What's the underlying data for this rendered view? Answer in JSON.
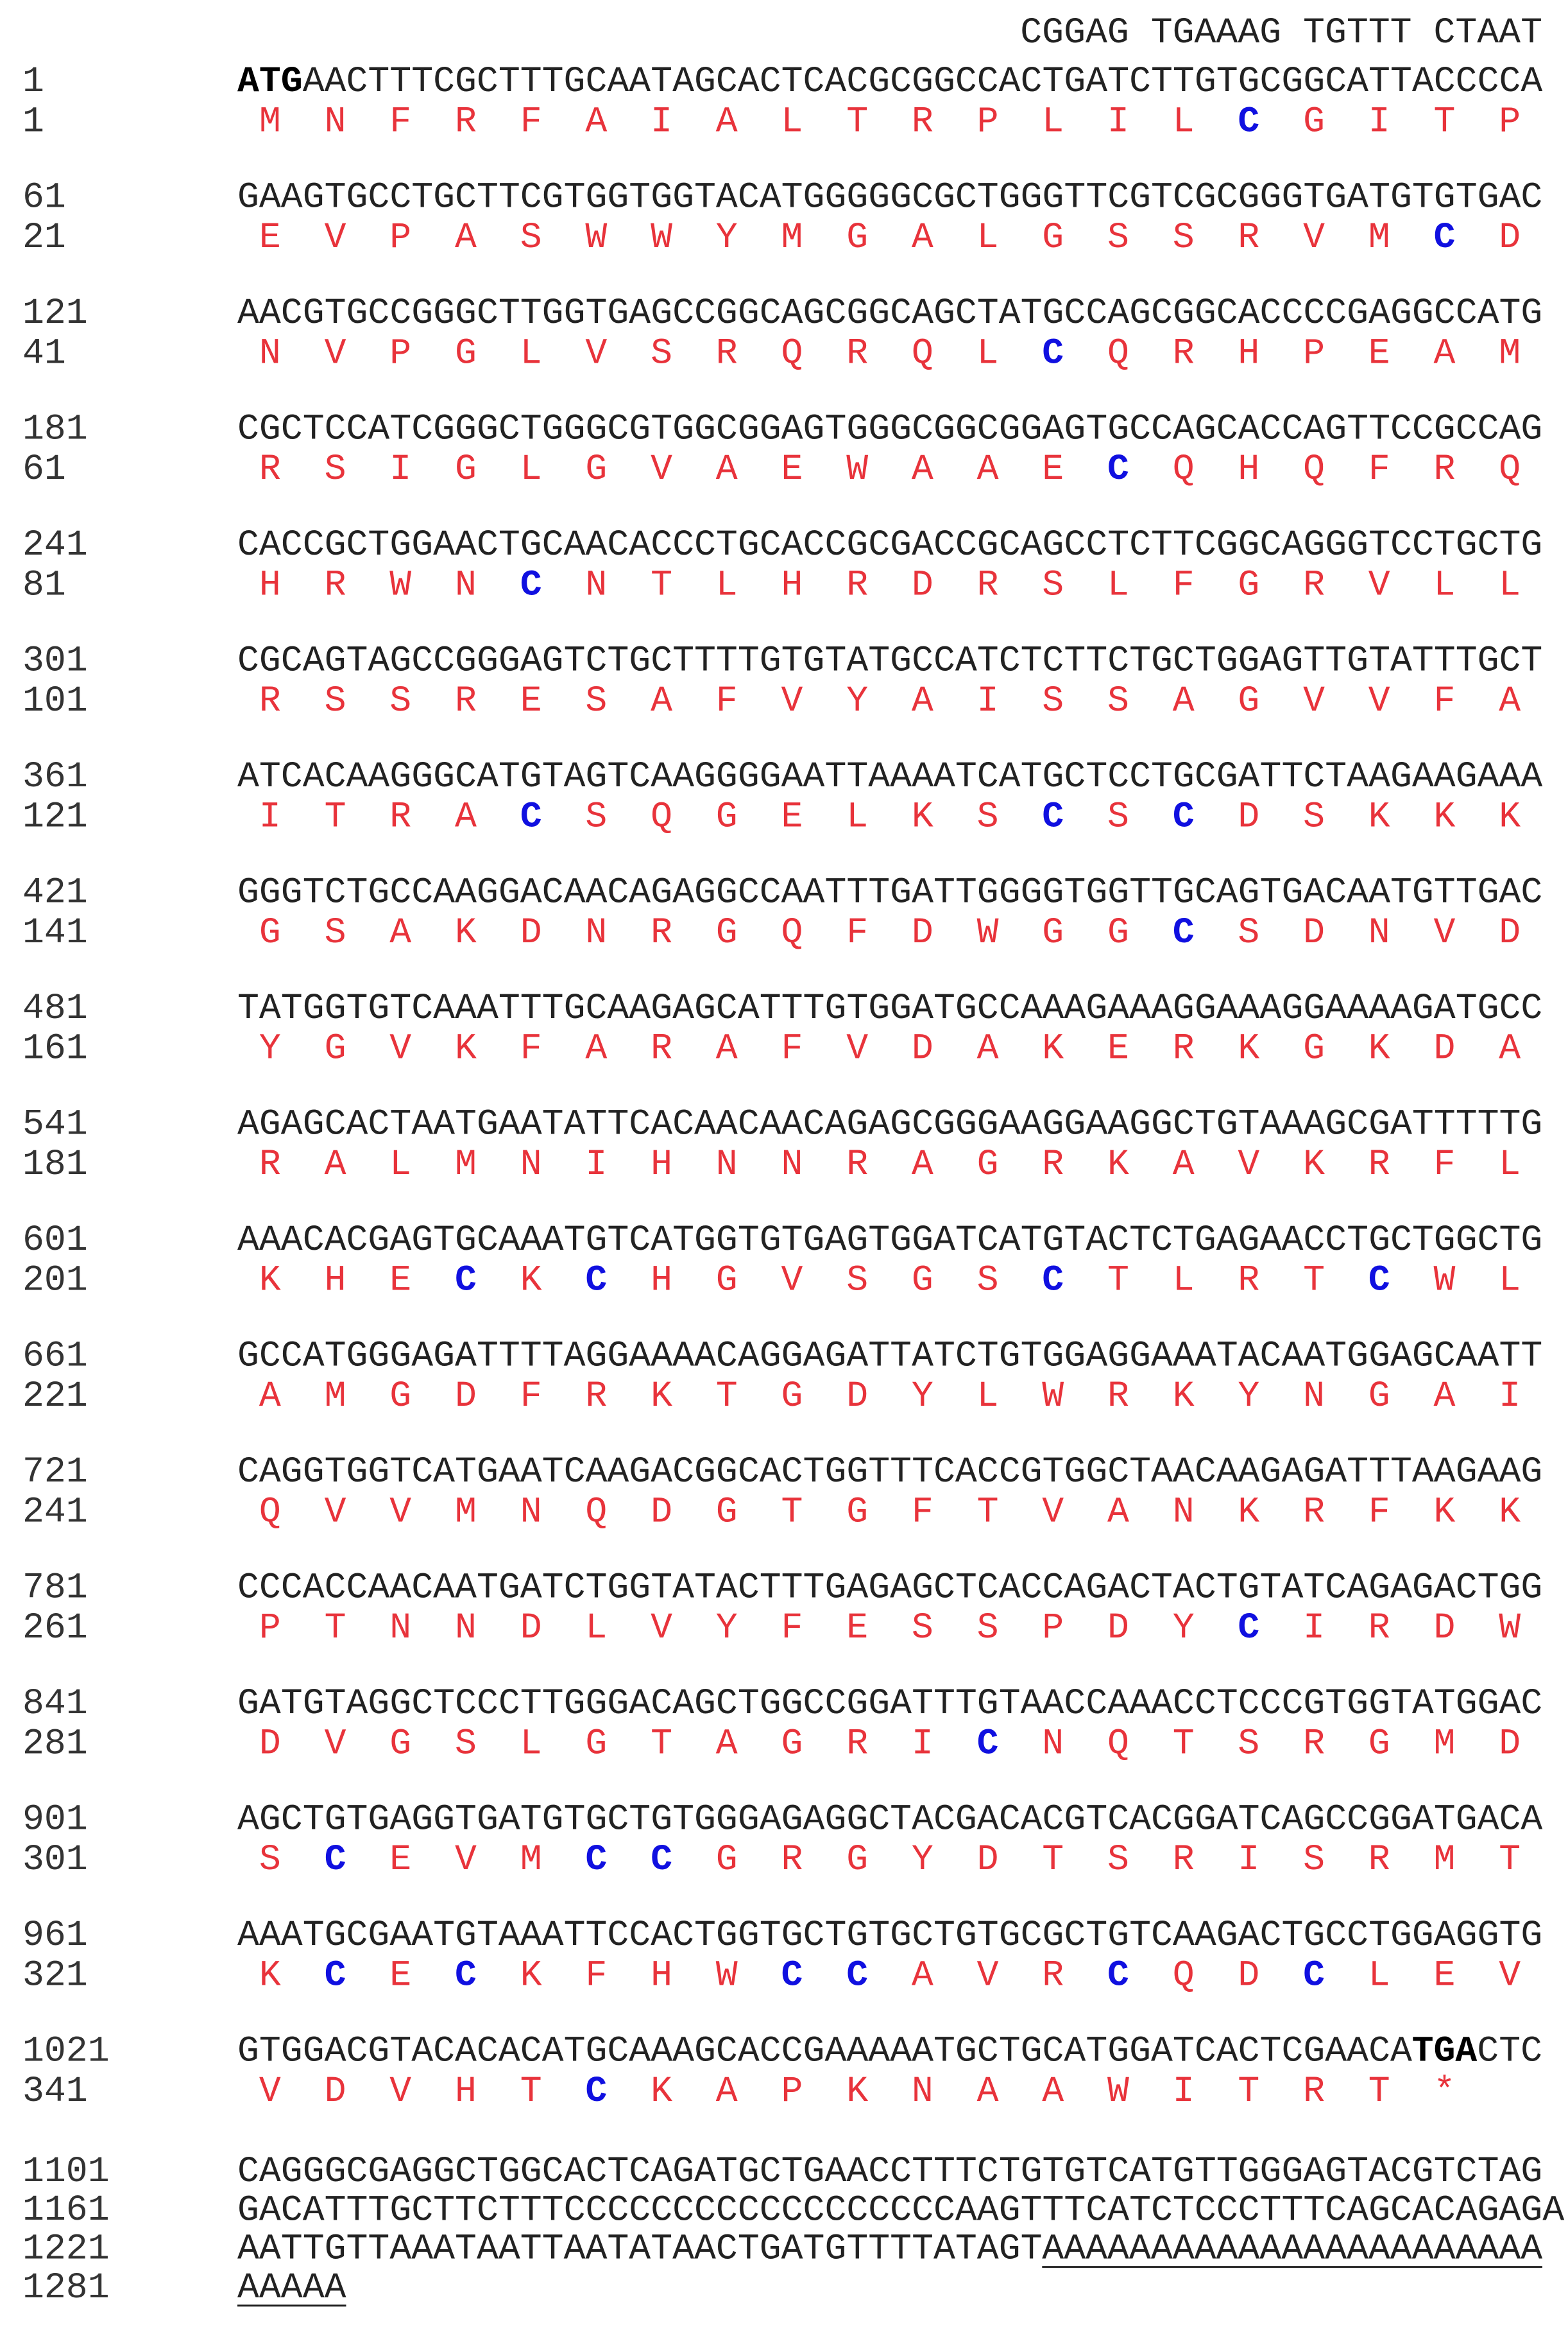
{
  "header": "CGGAG TGAAAG TGTTT CTAAT",
  "blocks": [
    {
      "nt_start": 1,
      "nt": [
        {
          "text": "ATG",
          "bold": true
        },
        "AACTTTCGCTTTGCAATAGCACTCACGCGGCCACTGATCTTGTGCGGCATTACCCCA"
      ],
      "aa_start": 1,
      "aa": [
        "M",
        "N",
        "F",
        "R",
        "F",
        "A",
        "I",
        "A",
        "L",
        "T",
        "R",
        "P",
        "L",
        "I",
        "L",
        {
          "text": "C",
          "bold": true
        },
        "G",
        "I",
        "T",
        "P"
      ]
    },
    {
      "nt_start": 61,
      "nt": [
        "GAAGTGCCTGCTTCGTGGTGGTACATGGGGGCGCTGGGTTCGTCGCGGGTGATGTGTGAC"
      ],
      "aa_start": 21,
      "aa": [
        "E",
        "V",
        "P",
        "A",
        "S",
        "W",
        "W",
        "Y",
        "M",
        "G",
        "A",
        "L",
        "G",
        "S",
        "S",
        "R",
        "V",
        "M",
        {
          "text": "C",
          "bold": true
        },
        "D"
      ]
    },
    {
      "nt_start": 121,
      "nt": [
        "AACGTGCCGGGCTTGGTGAGCCGGCAGCGGCAGCTATGCCAGCGGCACCCCGAGGCCATG"
      ],
      "aa_start": 41,
      "aa": [
        "N",
        "V",
        "P",
        "G",
        "L",
        "V",
        "S",
        "R",
        "Q",
        "R",
        "Q",
        "L",
        {
          "text": "C",
          "bold": true
        },
        "Q",
        "R",
        "H",
        "P",
        "E",
        "A",
        "M"
      ]
    },
    {
      "nt_start": 181,
      "nt": [
        "CGCTCCATCGGGCTGGGCGTGGCGGAGTGGGCGGCGGAGTGCCAGCACCAGTTCCGCCAG"
      ],
      "aa_start": 61,
      "aa": [
        "R",
        "S",
        "I",
        "G",
        "L",
        "G",
        "V",
        "A",
        "E",
        "W",
        "A",
        "A",
        "E",
        {
          "text": "C",
          "bold": true
        },
        "Q",
        "H",
        "Q",
        "F",
        "R",
        "Q"
      ]
    },
    {
      "nt_start": 241,
      "nt": [
        "CACCGCTGGAACTGCAACACCCTGCACCGCGACCGCAGCCTCTTCGGCAGGGTCCTGCTG"
      ],
      "aa_start": 81,
      "aa": [
        "H",
        "R",
        "W",
        "N",
        {
          "text": "C",
          "bold": true
        },
        "N",
        "T",
        "L",
        "H",
        "R",
        "D",
        "R",
        "S",
        "L",
        "F",
        "G",
        "R",
        "V",
        "L",
        "L"
      ]
    },
    {
      "nt_start": 301,
      "nt": [
        "CGCAGTAGCCGGGAGTCTGCTTTTGTGTATGCCATCTCTTCTGCTGGAGTTGTATTTGCT"
      ],
      "aa_start": 101,
      "aa": [
        "R",
        "S",
        "S",
        "R",
        "E",
        "S",
        "A",
        "F",
        "V",
        "Y",
        "A",
        "I",
        "S",
        "S",
        "A",
        "G",
        "V",
        "V",
        "F",
        "A"
      ]
    },
    {
      "nt_start": 361,
      "nt": [
        "ATCACAAGGGCATGTAGTCAAGGGGAATTAAAATCATGCTCCTGCGATTCTAAGAAGAAA"
      ],
      "aa_start": 121,
      "aa": [
        "I",
        "T",
        "R",
        "A",
        {
          "text": "C",
          "bold": true
        },
        "S",
        "Q",
        "G",
        "E",
        "L",
        "K",
        "S",
        {
          "text": "C",
          "bold": true
        },
        "S",
        {
          "text": "C",
          "bold": true
        },
        "D",
        "S",
        "K",
        "K",
        "K"
      ]
    },
    {
      "nt_start": 421,
      "nt": [
        "GGGTCTGCCAAGGACAACAGAGGCCAATTTGATTGGGGTGGTTGCAGTGACAATGTTGAC"
      ],
      "aa_start": 141,
      "aa": [
        "G",
        "S",
        "A",
        "K",
        "D",
        "N",
        "R",
        "G",
        "Q",
        "F",
        "D",
        "W",
        "G",
        "G",
        {
          "text": "C",
          "bold": true
        },
        "S",
        "D",
        "N",
        "V",
        "D"
      ]
    },
    {
      "nt_start": 481,
      "nt": [
        "TATGGTGTCAAATTTGCAAGAGCATTTGTGGATGCCAAAGAAAGGAAAGGAAAAGATGCC"
      ],
      "aa_start": 161,
      "aa": [
        "Y",
        "G",
        "V",
        "K",
        "F",
        "A",
        "R",
        "A",
        "F",
        "V",
        "D",
        "A",
        "K",
        "E",
        "R",
        "K",
        "G",
        "K",
        "D",
        "A"
      ]
    },
    {
      "nt_start": 541,
      "nt": [
        "AGAGCACTAATGAATATTCACAACAACAGAGCGGGAAGGAAGGCTGTAAAGCGATTTTTG"
      ],
      "aa_start": 181,
      "aa": [
        "R",
        "A",
        "L",
        "M",
        "N",
        "I",
        "H",
        "N",
        "N",
        "R",
        "A",
        "G",
        "R",
        "K",
        "A",
        "V",
        "K",
        "R",
        "F",
        "L"
      ]
    },
    {
      "nt_start": 601,
      "nt": [
        "AAACACGAGTGCAAATGTCATGGTGTGAGTGGATCATGTACTCTGAGAACCTGCTGGCTG"
      ],
      "aa_start": 201,
      "aa": [
        "K",
        "H",
        "E",
        {
          "text": "C",
          "bold": true
        },
        "K",
        {
          "text": "C",
          "bold": true
        },
        "H",
        "G",
        "V",
        "S",
        "G",
        "S",
        {
          "text": "C",
          "bold": true
        },
        "T",
        "L",
        "R",
        "T",
        {
          "text": "C",
          "bold": true
        },
        "W",
        "L"
      ]
    },
    {
      "nt_start": 661,
      "nt": [
        "GCCATGGGAGATTTTAGGAAAACAGGAGATTATCTGTGGAGGAAATACAATGGAGCAATT"
      ],
      "aa_start": 221,
      "aa": [
        "A",
        "M",
        "G",
        "D",
        "F",
        "R",
        "K",
        "T",
        "G",
        "D",
        "Y",
        "L",
        "W",
        "R",
        "K",
        "Y",
        "N",
        "G",
        "A",
        "I"
      ]
    },
    {
      "nt_start": 721,
      "nt": [
        "CAGGTGGTCATGAATCAAGACGGCACTGGTTTCACCGTGGCTAACAAGAGATTTAAGAAG"
      ],
      "aa_start": 241,
      "aa": [
        "Q",
        "V",
        "V",
        "M",
        "N",
        "Q",
        "D",
        "G",
        "T",
        "G",
        "F",
        "T",
        "V",
        "A",
        "N",
        "K",
        "R",
        "F",
        "K",
        "K"
      ]
    },
    {
      "nt_start": 781,
      "nt": [
        "CCCACCAACAATGATCTGGTATACTTTGAGAGCTCACCAGACTACTGTATCAGAGACTGG"
      ],
      "aa_start": 261,
      "aa": [
        "P",
        "T",
        "N",
        "N",
        "D",
        "L",
        "V",
        "Y",
        "F",
        "E",
        "S",
        "S",
        "P",
        "D",
        "Y",
        {
          "text": "C",
          "bold": true
        },
        "I",
        "R",
        "D",
        "W"
      ]
    },
    {
      "nt_start": 841,
      "nt": [
        "GATGTAGGCTCCCTTGGGACAGCTGGCCGGATTTGTAACCAAACCTCCCGTGGTATGGAC"
      ],
      "aa_start": 281,
      "aa": [
        "D",
        "V",
        "G",
        "S",
        "L",
        "G",
        "T",
        "A",
        "G",
        "R",
        "I",
        {
          "text": "C",
          "bold": true
        },
        "N",
        "Q",
        "T",
        "S",
        "R",
        "G",
        "M",
        "D"
      ]
    },
    {
      "nt_start": 901,
      "nt": [
        "AGCTGTGAGGTGATGTGCTGTGGGAGAGGCTACGACACGTCACGGATCAGCCGGATGACA"
      ],
      "aa_start": 301,
      "aa": [
        "S",
        {
          "text": "C",
          "bold": true
        },
        "E",
        "V",
        "M",
        {
          "text": "C",
          "bold": true
        },
        {
          "text": "C",
          "bold": true
        },
        "G",
        "R",
        "G",
        "Y",
        "D",
        "T",
        "S",
        "R",
        "I",
        "S",
        "R",
        "M",
        "T"
      ]
    },
    {
      "nt_start": 961,
      "nt": [
        "AAATGCGAATGTAAATTCCACTGGTGCTGTGCTGTGCGCTGTCAAGACTGCCTGGAGGTG"
      ],
      "aa_start": 321,
      "aa": [
        "K",
        {
          "text": "C",
          "bold": true
        },
        "E",
        {
          "text": "C",
          "bold": true
        },
        "K",
        "F",
        "H",
        "W",
        {
          "text": "C",
          "bold": true
        },
        {
          "text": "C",
          "bold": true
        },
        "A",
        "V",
        "R",
        {
          "text": "C",
          "bold": true
        },
        "Q",
        "D",
        {
          "text": "C",
          "bold": true
        },
        "L",
        "E",
        "V"
      ]
    },
    {
      "nt_start": 1021,
      "nt": [
        "GTGGACGTACACACATGCAAAGCACCGAAAAATGCTGCATGGATCACTCGAACA",
        {
          "text": "TGA",
          "bold": true
        },
        "CTC"
      ],
      "aa_start": 341,
      "aa": [
        "V",
        "D",
        "V",
        "H",
        "T",
        {
          "text": "C",
          "bold": true
        },
        "K",
        "A",
        "P",
        "K",
        "N",
        "A",
        "A",
        "W",
        "I",
        "T",
        "R",
        "T",
        "*"
      ]
    }
  ],
  "tail": [
    {
      "nt_start": 1101,
      "nt": [
        "CAGGGCGAGGCTGGCACTCAGATGCTGAACCTTTCTGTGTCATGTTGGGAGTACGTCTAG"
      ]
    },
    {
      "nt_start": 1161,
      "nt": [
        "GACATTTGCTTCTTTCCCCCCCCCCCCCCCCCCAAGTTTCATCTCCCTTTCAGCACAGAGA"
      ]
    },
    {
      "nt_start": 1221,
      "nt": [
        "AATTGTTAAATAATTAATATAACTGATGTTTTATAGT",
        {
          "text": "AAAAAAAAAAAAAAAAAAAAAAA",
          "underline": true
        }
      ]
    },
    {
      "nt_start": 1281,
      "nt": [
        {
          "text": "AAAAA",
          "underline": true
        }
      ]
    }
  ]
}
